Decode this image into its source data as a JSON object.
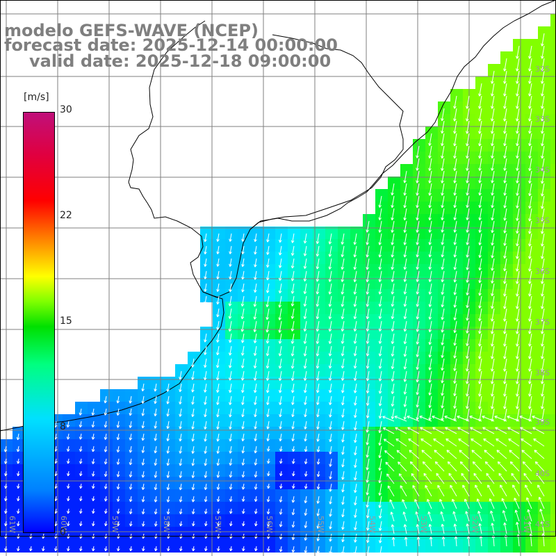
{
  "title": {
    "line1": "modelo GEFS-WAVE (NCEP)",
    "line2": "forecast date: 2025-12-14 00:00:00",
    "line3": "valid date: 2025-12-18 09:00:00"
  },
  "colorbar": {
    "unit": "[m/s]",
    "ticks": [
      {
        "label": "30",
        "value": 30
      },
      {
        "label": "22",
        "value": 22
      },
      {
        "label": "15",
        "value": 15
      },
      {
        "label": "8",
        "value": 8
      },
      {
        "label": "0",
        "value": 0
      }
    ]
  },
  "map": {
    "lat_labels": [
      "32S",
      "33S",
      "34S",
      "35S",
      "36S",
      "37S",
      "38S",
      "39S",
      "40S",
      "41S"
    ],
    "lon_labels": [
      "61W",
      "60W",
      "59W",
      "58W",
      "57W",
      "56W",
      "55W",
      "54W",
      "53W",
      "52W",
      "51W"
    ],
    "colors": {
      "land": "#ffffff",
      "grid": "#7f7f7f",
      "coast": "#000000",
      "arrow": "#ffffff",
      "title": "#7f7f7f"
    }
  }
}
